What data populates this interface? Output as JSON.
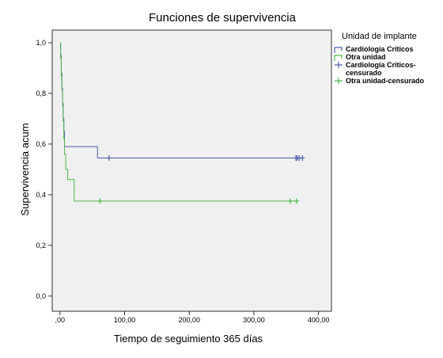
{
  "chart_data": {
    "type": "line",
    "title": "Funciones de supervivencia",
    "xlabel": "Tiempo de seguimiento 365 días",
    "ylabel": "Supervivencia acum",
    "xlim": [
      -12,
      420
    ],
    "ylim": [
      -0.06,
      1.05
    ],
    "x_ticks": [
      0,
      100,
      200,
      300,
      400
    ],
    "x_tick_labels": [
      ",00",
      "100,00",
      "200,00",
      "300,00",
      "400,00"
    ],
    "y_ticks": [
      0.0,
      0.2,
      0.4,
      0.6,
      0.8,
      1.0
    ],
    "y_tick_labels": [
      "0,0",
      "0,2",
      "0,4",
      "0,6",
      "0,8",
      "1,0"
    ],
    "grid": false,
    "plot_background": "#f0f0f0",
    "legend": {
      "title": "Unidad de implante",
      "placement": "right",
      "entries": [
        {
          "label": "Cardiología Críticos",
          "kind": "line",
          "color": "#4a5ea8"
        },
        {
          "label": "Otra unidad",
          "kind": "line",
          "color": "#4cb848"
        },
        {
          "label": "Cardiología Críticos-censurado",
          "label_lines": [
            "Cardiología Críticos-",
            "censurado"
          ],
          "kind": "censor",
          "color": "#4a5ea8"
        },
        {
          "label": "Otra unidad-censurado",
          "kind": "censor",
          "color": "#4cb848"
        }
      ]
    },
    "series": [
      {
        "name": "Cardiología Críticos",
        "color": "#4a5ea8",
        "steps": [
          [
            0,
            1.0
          ],
          [
            1,
            0.95
          ],
          [
            2,
            0.88
          ],
          [
            3,
            0.82
          ],
          [
            4,
            0.76
          ],
          [
            5,
            0.7
          ],
          [
            6,
            0.65
          ],
          [
            7,
            0.59
          ],
          [
            58,
            0.545
          ],
          [
            375,
            0.545
          ]
        ],
        "censored_x": [
          76,
          365,
          367,
          370,
          375
        ]
      },
      {
        "name": "Otra unidad",
        "color": "#4cb848",
        "steps": [
          [
            0,
            1.0
          ],
          [
            1,
            0.94
          ],
          [
            2,
            0.87
          ],
          [
            3,
            0.81
          ],
          [
            4,
            0.75
          ],
          [
            5,
            0.69
          ],
          [
            6,
            0.62
          ],
          [
            7,
            0.56
          ],
          [
            9,
            0.5
          ],
          [
            12,
            0.46
          ],
          [
            22,
            0.375
          ],
          [
            365,
            0.375
          ]
        ],
        "censored_x": [
          62,
          356,
          366
        ]
      }
    ]
  }
}
